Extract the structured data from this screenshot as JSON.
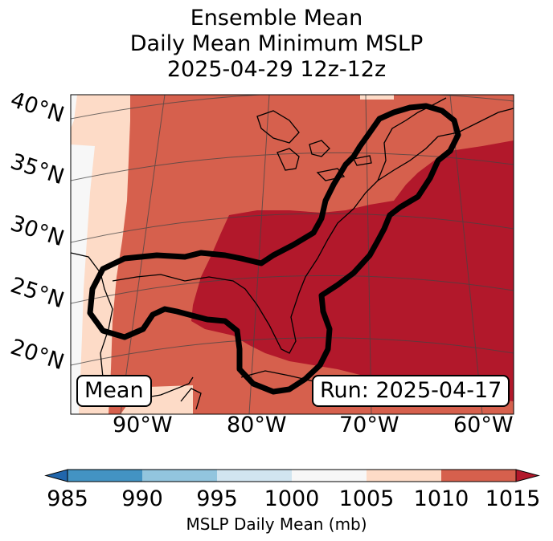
{
  "title": {
    "line1": "Ensemble Mean",
    "line2": "Daily Mean Minimum MSLP",
    "line3": "2025-04-29 12z-12z"
  },
  "axes": {
    "lat_labels": [
      "40°N",
      "35°N",
      "30°N",
      "25°N",
      "20°N"
    ],
    "lon_labels": [
      "90°W",
      "80°W",
      "70°W",
      "60°W"
    ]
  },
  "annotations": {
    "left_box": "Mean",
    "right_box": "Run: 2025-04-17"
  },
  "colorbar": {
    "ticks": [
      "985",
      "990",
      "995",
      "1000",
      "1005",
      "1010",
      "1015"
    ],
    "label": "MSLP Daily Mean (mb)",
    "colors": [
      "#2166ac",
      "#4393c3",
      "#92c5de",
      "#d1e5f0",
      "#f7f7f7",
      "#fddbc7",
      "#d6604d",
      "#b2182b"
    ]
  },
  "map_colors": {
    "band_1000_1005": "#f7f7f7",
    "band_1005_1010": "#fddbc7",
    "band_1010_1015": "#d6604d",
    "band_above_1015": "#b2182b"
  }
}
